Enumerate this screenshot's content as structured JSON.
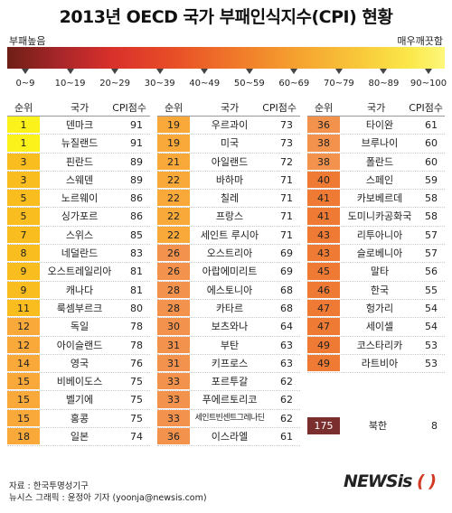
{
  "title": "2013년 OECD 국가 부패인식지수(CPI) 현황",
  "scale": {
    "left_label": "부패높음",
    "right_label": "매우깨끗함",
    "ranges": [
      "0~9",
      "10~19",
      "20~29",
      "30~39",
      "40~49",
      "50~59",
      "60~69",
      "70~79",
      "80~89",
      "90~100"
    ]
  },
  "headers": {
    "rank": "순위",
    "country": "국가",
    "score": "CPI점수"
  },
  "colors": {
    "score_90_100": "#fbf21c",
    "score_80_89": "#f9bd1f",
    "score_70_79": "#f9a93a",
    "score_60_69": "#f3924c",
    "score_50_59": "#ef7a33",
    "score_0_9": "#7b2e2e"
  },
  "chart_data": {
    "type": "table",
    "title": "2013년 OECD 국가 부패인식지수(CPI) 현황",
    "columns": [
      "순위",
      "국가",
      "CPI점수"
    ],
    "rows": [
      {
        "rank": "1",
        "country": "덴마크",
        "score": 91
      },
      {
        "rank": "1",
        "country": "뉴질랜드",
        "score": 91
      },
      {
        "rank": "3",
        "country": "핀란드",
        "score": 89
      },
      {
        "rank": "3",
        "country": "스웨덴",
        "score": 89
      },
      {
        "rank": "5",
        "country": "노르웨이",
        "score": 86
      },
      {
        "rank": "5",
        "country": "싱가포르",
        "score": 86
      },
      {
        "rank": "7",
        "country": "스위스",
        "score": 85
      },
      {
        "rank": "8",
        "country": "네덜란드",
        "score": 83
      },
      {
        "rank": "9",
        "country": "오스트레일리아",
        "score": 81
      },
      {
        "rank": "9",
        "country": "캐나다",
        "score": 81
      },
      {
        "rank": "11",
        "country": "룩셈부르크",
        "score": 80
      },
      {
        "rank": "12",
        "country": "독일",
        "score": 78
      },
      {
        "rank": "12",
        "country": "아이슬랜드",
        "score": 78
      },
      {
        "rank": "14",
        "country": "영국",
        "score": 76
      },
      {
        "rank": "15",
        "country": "비베이도스",
        "score": 75
      },
      {
        "rank": "15",
        "country": "벨기에",
        "score": 75
      },
      {
        "rank": "15",
        "country": "홍콩",
        "score": 75
      },
      {
        "rank": "18",
        "country": "일본",
        "score": 74
      },
      {
        "rank": "19",
        "country": "우르과이",
        "score": 73
      },
      {
        "rank": "19",
        "country": "미국",
        "score": 73
      },
      {
        "rank": "21",
        "country": "아일랜드",
        "score": 72
      },
      {
        "rank": "22",
        "country": "바하마",
        "score": 71
      },
      {
        "rank": "22",
        "country": "칠레",
        "score": 71
      },
      {
        "rank": "22",
        "country": "프랑스",
        "score": 71
      },
      {
        "rank": "22",
        "country": "세인트 루시아",
        "score": 71
      },
      {
        "rank": "26",
        "country": "오스트리아",
        "score": 69
      },
      {
        "rank": "26",
        "country": "아랍에미리트",
        "score": 69
      },
      {
        "rank": "28",
        "country": "에스토니아",
        "score": 68
      },
      {
        "rank": "28",
        "country": "카타르",
        "score": 68
      },
      {
        "rank": "30",
        "country": "보츠와나",
        "score": 64
      },
      {
        "rank": "31",
        "country": "부탄",
        "score": 63
      },
      {
        "rank": "31",
        "country": "키프로스",
        "score": 63
      },
      {
        "rank": "33",
        "country": "포르투갈",
        "score": 62
      },
      {
        "rank": "33",
        "country": "푸에르토리코",
        "score": 62
      },
      {
        "rank": "33",
        "country": "세인트빈센트그레나딘",
        "score": 62
      },
      {
        "rank": "36",
        "country": "이스라엘",
        "score": 61
      },
      {
        "rank": "36",
        "country": "타이완",
        "score": 61
      },
      {
        "rank": "38",
        "country": "브루나이",
        "score": 60
      },
      {
        "rank": "38",
        "country": "폴란드",
        "score": 60
      },
      {
        "rank": "40",
        "country": "스페인",
        "score": 59
      },
      {
        "rank": "41",
        "country": "카보베르데",
        "score": 58
      },
      {
        "rank": "41",
        "country": "도미니카공화국",
        "score": 58
      },
      {
        "rank": "43",
        "country": "리투아니아",
        "score": 57
      },
      {
        "rank": "43",
        "country": "슬로베니아",
        "score": 57
      },
      {
        "rank": "45",
        "country": "말타",
        "score": 56
      },
      {
        "rank": "46",
        "country": "한국",
        "score": 55
      },
      {
        "rank": "47",
        "country": "헝가리",
        "score": 54
      },
      {
        "rank": "47",
        "country": "세이셀",
        "score": 54
      },
      {
        "rank": "49",
        "country": "코스타리카",
        "score": 53
      },
      {
        "rank": "49",
        "country": "라트비아",
        "score": 53
      }
    ],
    "extra_row": {
      "rank": "175",
      "country": "북한",
      "score": 8
    }
  },
  "footer": {
    "source": "자료 : 한국투명성기구",
    "credit": "뉴시스 그래픽 : 윤정아 기자 (yoonja@newsis.com)"
  },
  "logo": {
    "part1": "NEWSis",
    "part2": "( )"
  }
}
